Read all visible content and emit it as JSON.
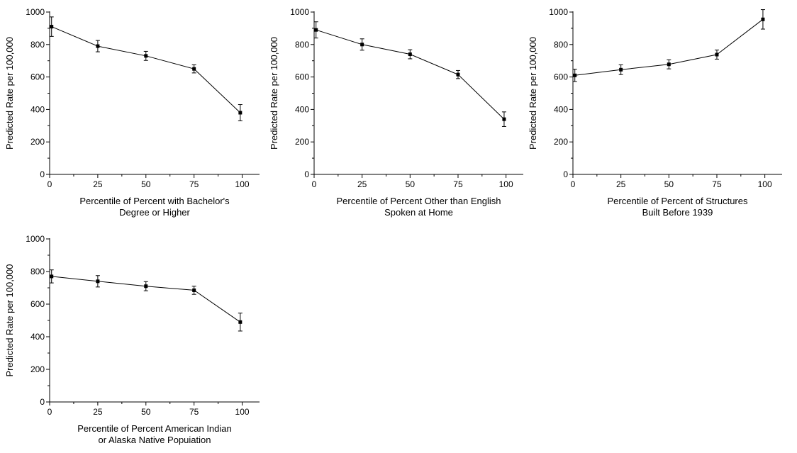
{
  "chart_data": [
    {
      "type": "line",
      "title": "",
      "xlabel": [
        "Percentile of Percent with Bachelor's",
        "Degree or Higher"
      ],
      "ylabel": "Predicted Rate per 100,000",
      "xlim": [
        0,
        109
      ],
      "ylim": [
        0,
        1000
      ],
      "xticks": [
        0,
        25,
        50,
        75,
        100
      ],
      "yticks": [
        0,
        200,
        400,
        600,
        800,
        1000
      ],
      "grid": false,
      "legend": "none",
      "series": [
        {
          "x": [
            1,
            25,
            50,
            75,
            99
          ],
          "y": [
            910,
            790,
            730,
            650,
            380
          ],
          "err": [
            60,
            35,
            28,
            25,
            50
          ]
        }
      ]
    },
    {
      "type": "line",
      "title": "",
      "xlabel": [
        "Percentile of Percent Other than English",
        "Spoken at Home"
      ],
      "ylabel": "Predicted Rate per 100,000",
      "xlim": [
        0,
        109
      ],
      "ylim": [
        0,
        1000
      ],
      "xticks": [
        0,
        25,
        50,
        75,
        100
      ],
      "yticks": [
        0,
        200,
        400,
        600,
        800,
        1000
      ],
      "grid": false,
      "legend": "none",
      "series": [
        {
          "x": [
            1,
            25,
            50,
            75,
            99
          ],
          "y": [
            890,
            800,
            740,
            615,
            340
          ],
          "err": [
            50,
            35,
            28,
            25,
            45
          ]
        }
      ]
    },
    {
      "type": "line",
      "title": "",
      "xlabel": [
        "Percentile of Percent of Structures",
        "Built Before 1939"
      ],
      "ylabel": "Predicted Rate per 100,000",
      "xlim": [
        0,
        109
      ],
      "ylim": [
        0,
        1000
      ],
      "xticks": [
        0,
        25,
        50,
        75,
        100
      ],
      "yticks": [
        0,
        200,
        400,
        600,
        800,
        1000
      ],
      "grid": false,
      "legend": "none",
      "series": [
        {
          "x": [
            1,
            25,
            50,
            75,
            99
          ],
          "y": [
            610,
            645,
            678,
            738,
            955
          ],
          "err": [
            38,
            30,
            28,
            28,
            60
          ]
        }
      ]
    },
    {
      "type": "line",
      "title": "",
      "xlabel": [
        "Percentile of Percent American Indian",
        "or Alaska Native Popuiation"
      ],
      "ylabel": "Predicted Rate per 100,000",
      "xlim": [
        0,
        109
      ],
      "ylim": [
        0,
        1000
      ],
      "xticks": [
        0,
        25,
        50,
        75,
        100
      ],
      "yticks": [
        0,
        200,
        400,
        600,
        800,
        1000
      ],
      "grid": false,
      "legend": "none",
      "series": [
        {
          "x": [
            1,
            25,
            50,
            75,
            99
          ],
          "y": [
            770,
            740,
            710,
            685,
            490
          ],
          "err": [
            40,
            35,
            28,
            25,
            55
          ]
        }
      ]
    }
  ]
}
